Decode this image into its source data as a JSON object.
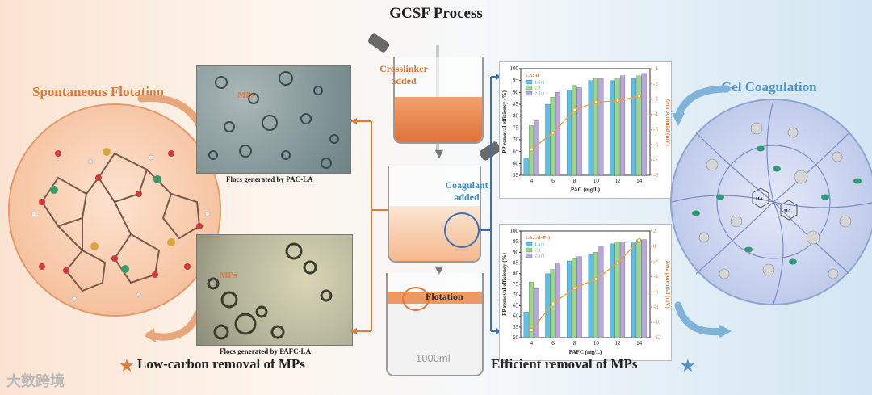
{
  "title": "GCSF Process",
  "left_section": {
    "title": "Spontaneous Flotation",
    "photo1": {
      "mps_label": "MPs",
      "caption": "Flocs generated by PAC-LA"
    },
    "photo2": {
      "mps_label": "MPs",
      "caption": "Flocs generated by PAFC-LA"
    },
    "bottom_label": "Low-carbon removal of MPs"
  },
  "middle_section": {
    "beaker1_label_line1": "Crosslinker",
    "beaker1_label_line2": "added",
    "beaker2_label_line1": "Coagulant",
    "beaker2_label_line2": "added",
    "beaker3_label": "Flotation",
    "beaker3_volume": "1000ml"
  },
  "right_section": {
    "title": "Gel Coagulation",
    "bottom_label": "Efficient removal of MPs",
    "molecule_label": "HA"
  },
  "watermark": "大数跨境",
  "colors": {
    "orange": "#e07a3a",
    "blue": "#4e92c8",
    "bar1": "#5bc0e8",
    "bar2": "#9ad88e",
    "bar3": "#b9a6e0"
  },
  "chart_data": [
    {
      "type": "bar",
      "legend_title": "LA:Al",
      "categories": [
        "4",
        "6",
        "8",
        "10",
        "12",
        "14"
      ],
      "series": [
        {
          "name": "1.5:1",
          "values": [
            62,
            85,
            91,
            95,
            95,
            96
          ]
        },
        {
          "name": "2:1",
          "values": [
            76,
            88,
            93,
            96,
            96,
            97
          ]
        },
        {
          "name": "2.5:1",
          "values": [
            78,
            90,
            92,
            96,
            97,
            98
          ]
        }
      ],
      "line_series": {
        "name": "Zeta potential",
        "values": [
          -6.3,
          -5.2,
          -3.7,
          -3.2,
          -3.1,
          -2.8
        ]
      },
      "xlabel": "PAC (mg/L)",
      "ylabel": "PP removal efficiency (%)",
      "y2label": "Zeta potential (mV)",
      "ylim": [
        55,
        100
      ],
      "y2lim": [
        -8,
        -1
      ],
      "yticks": [
        "55",
        "60",
        "65",
        "70",
        "75",
        "80",
        "85",
        "90",
        "95",
        "100"
      ],
      "y2ticks": [
        "-1",
        "-2",
        "-3",
        "-4",
        "-5",
        "-6",
        "-7",
        "-8"
      ]
    },
    {
      "type": "bar",
      "legend_title": "LA:(Al+Fe)",
      "categories": [
        "4",
        "6",
        "8",
        "10",
        "12",
        "14"
      ],
      "series": [
        {
          "name": "1.5:1",
          "values": [
            62,
            80,
            86,
            89,
            94,
            95
          ]
        },
        {
          "name": "2:1",
          "values": [
            76,
            82,
            87,
            90,
            95,
            96
          ]
        },
        {
          "name": "2.5:1",
          "values": [
            73,
            85,
            88,
            93,
            95,
            96
          ]
        }
      ],
      "line_series": {
        "name": "Zeta potential",
        "values": [
          -11,
          -7.5,
          -5.5,
          -4.3,
          -2.2,
          0.8
        ]
      },
      "xlabel": "PAFC (mg/L)",
      "ylabel": "PP removal efficiency (%)",
      "y2label": "Zeta potential (mV)",
      "ylim": [
        50,
        100
      ],
      "y2lim": [
        -12,
        2
      ],
      "yticks": [
        "50",
        "55",
        "60",
        "65",
        "70",
        "75",
        "80",
        "85",
        "90",
        "95",
        "100"
      ],
      "y2ticks": [
        "2",
        "0",
        "-2",
        "-4",
        "-6",
        "-8",
        "-10",
        "-12"
      ]
    }
  ]
}
